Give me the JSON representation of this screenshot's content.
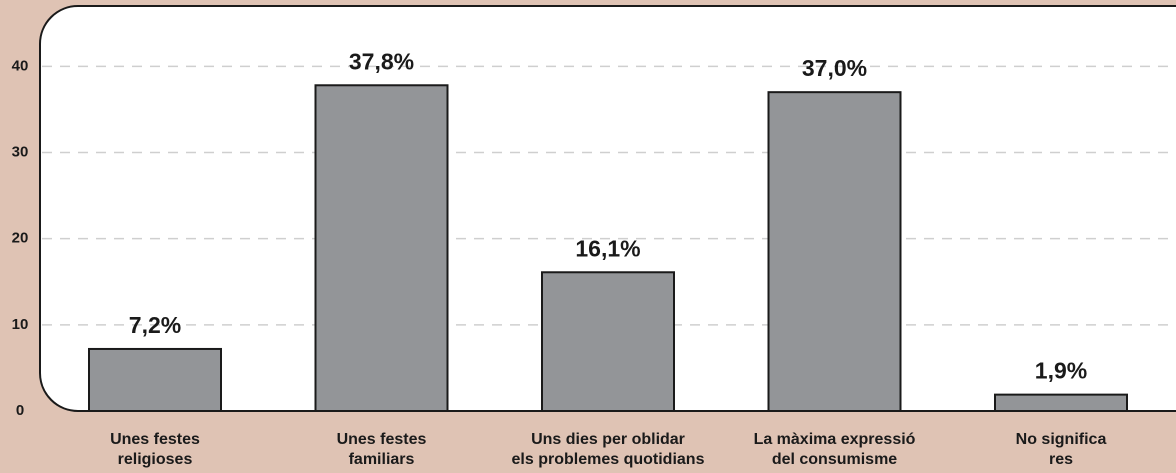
{
  "chart_data": {
    "type": "bar",
    "categories": [
      [
        "Unes festes",
        "religioses"
      ],
      [
        "Unes festes",
        "familiars"
      ],
      [
        "Uns dies per oblidar",
        "els problemes quotidians"
      ],
      [
        "La màxima expressió",
        "del consumisme"
      ],
      [
        "No significa",
        "res"
      ]
    ],
    "values": [
      7.2,
      37.8,
      16.1,
      37.0,
      1.9
    ],
    "value_labels": [
      "7,2%",
      "37,8%",
      "16,1%",
      "37,0%",
      "1,9%"
    ],
    "color": "#939598",
    "ylim": [
      0,
      47
    ],
    "yticks": [
      0,
      10,
      20,
      30,
      40
    ],
    "grid": true
  }
}
